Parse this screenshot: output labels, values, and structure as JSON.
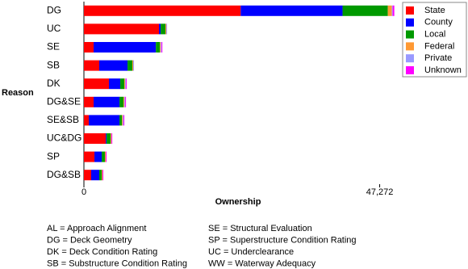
{
  "chart_data": {
    "type": "stacked-bar-horizontal",
    "x_label": "Ownership",
    "y_label": "Reason",
    "categories": [
      "DG",
      "UC",
      "SE",
      "SB",
      "DK",
      "DG&SE",
      "SE&SB",
      "UC&DG",
      "SP",
      "DG&SB"
    ],
    "series": [
      {
        "name": "State",
        "color": "#ff0000",
        "values": [
          25060,
          12000,
          1550,
          2450,
          4000,
          1550,
          780,
          3490,
          1680,
          1160
        ]
      },
      {
        "name": "County",
        "color": "#0000ff",
        "values": [
          16280,
          260,
          9950,
          4520,
          1810,
          4130,
          4900,
          130,
          1160,
          1290
        ]
      },
      {
        "name": "Local",
        "color": "#009900",
        "values": [
          7230,
          770,
          650,
          770,
          650,
          650,
          390,
          650,
          520,
          390
        ]
      },
      {
        "name": "Federal",
        "color": "#ff9933",
        "values": [
          650,
          130,
          130,
          130,
          130,
          130,
          130,
          130,
          130,
          130
        ]
      },
      {
        "name": "Private",
        "color": "#9999ff",
        "values": [
          130,
          130,
          130,
          130,
          130,
          130,
          130,
          0,
          0,
          0
        ]
      },
      {
        "name": "Unknown",
        "color": "#ff00ff",
        "values": [
          260,
          0,
          130,
          0,
          130,
          130,
          130,
          130,
          130,
          130
        ]
      }
    ],
    "xlim": [
      0,
      50000
    ],
    "xticks": [
      0,
      {
        "value": 47272,
        "label": "47,272"
      }
    ],
    "grid": false,
    "legend": "top-right",
    "footnotes": [
      "AL = Approach Alignment",
      "DG = Deck Geometry",
      "DK = Deck Condition Rating",
      "SB = Substructure Condition Rating",
      "SE = Structural Evaluation",
      "SP = Superstructure Condition Rating",
      "UC = Underclearance",
      "WW = Waterway Adequacy"
    ]
  }
}
